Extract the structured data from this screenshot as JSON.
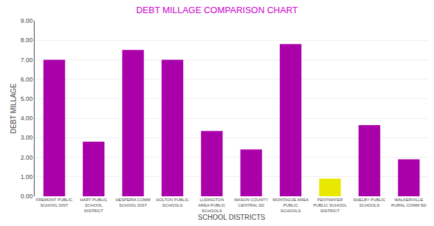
{
  "chart_data": {
    "type": "bar",
    "title": "DEBT MILLAGE COMPARISON CHART",
    "xlabel": "SCHOOL DISTRICTS",
    "ylabel": "DEBT MILLAGE",
    "categories": [
      "FREMONT PUBLIC\nSCHOOL DIST",
      "HART PUBLIC\nSCHOOL\nDISTRICT",
      "HESPERIA COMM\nSCHOOL DIST",
      "HOLTON PUBLIC\nSCHOOLS",
      "LUDINGTON\nAREA PUBLIC\nSCHOOLS",
      "MASON COUNTY\nCENTRAL SD",
      "MONTAGUE AREA\nPUBLIC\nSCHOOLS",
      "PENTWATER\nPUBLIC SCHOOL\nDISTRICT",
      "SHELBY PUBLIC\nSCHOOLS",
      "WALKERVILLE\nRURAL COMM SD"
    ],
    "values": [
      7.0,
      2.8,
      7.5,
      7.0,
      3.35,
      2.4,
      7.8,
      0.9,
      3.65,
      1.9
    ],
    "colors": [
      "#aa00aa",
      "#aa00aa",
      "#aa00aa",
      "#aa00aa",
      "#aa00aa",
      "#aa00aa",
      "#aa00aa",
      "#e8e800",
      "#aa00aa",
      "#aa00aa"
    ],
    "ylim": [
      0.0,
      9.0
    ],
    "yticks": [
      {
        "value": 0.0,
        "label": "0.00"
      },
      {
        "value": 1.0,
        "label": "1.00"
      },
      {
        "value": 2.0,
        "label": "2.00"
      },
      {
        "value": 3.0,
        "label": "3.00"
      },
      {
        "value": 4.0,
        "label": "4.00"
      },
      {
        "value": 5.0,
        "label": "5.00"
      },
      {
        "value": 6.0,
        "label": "6.00"
      },
      {
        "value": 7.0,
        "label": "7.00"
      },
      {
        "value": 8.0,
        "label": "8.00"
      },
      {
        "value": 9.0,
        "label": "9.00"
      }
    ],
    "grid": true
  }
}
